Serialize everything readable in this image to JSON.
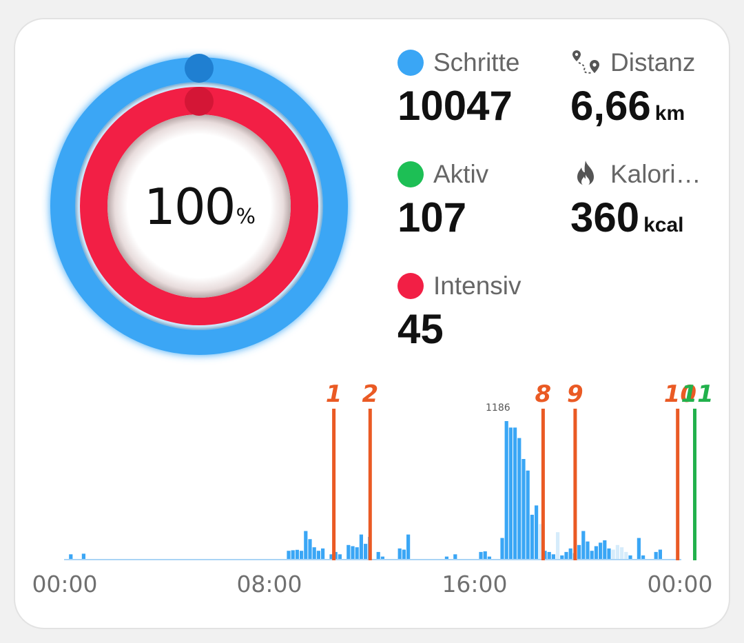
{
  "ring": {
    "percent": "100",
    "percent_unit": "%",
    "outer_color": "#3aa6f5",
    "inner_color": "#f21f45"
  },
  "stats": {
    "steps": {
      "label": "Schritte",
      "value": "10047",
      "color": "#3aa6f5"
    },
    "distance": {
      "label": "Distanz",
      "value": "6,66",
      "unit": "km",
      "icon": "route-pin-icon"
    },
    "active": {
      "label": "Aktiv",
      "value": "107",
      "color": "#1dbf55"
    },
    "calories": {
      "label": "Kalori…",
      "value": "360",
      "unit": "kcal",
      "icon": "flame-icon"
    },
    "intense": {
      "label": "Intensiv",
      "value": "45",
      "color": "#f21f45"
    }
  },
  "chart_data": {
    "type": "bar",
    "x_ticks": [
      "00:00",
      "08:00",
      "16:00",
      "00:00"
    ],
    "peak_label": "1186",
    "ymax": 1186,
    "bar_color": "#3aa6f5",
    "faint_bar_color": "#d6ecfb",
    "bars": [
      {
        "slot": 1,
        "v": 40
      },
      {
        "slot": 4,
        "v": 45
      },
      {
        "slot": 52,
        "v": 70
      },
      {
        "slot": 53,
        "v": 75
      },
      {
        "slot": 54,
        "v": 78
      },
      {
        "slot": 55,
        "v": 70
      },
      {
        "slot": 56,
        "v": 240
      },
      {
        "slot": 57,
        "v": 170
      },
      {
        "slot": 58,
        "v": 100
      },
      {
        "slot": 59,
        "v": 70
      },
      {
        "slot": 60,
        "v": 90
      },
      {
        "slot": 62,
        "v": 40
      },
      {
        "slot": 63,
        "v": 60
      },
      {
        "slot": 64,
        "v": 40
      },
      {
        "slot": 66,
        "v": 120
      },
      {
        "slot": 67,
        "v": 110
      },
      {
        "slot": 68,
        "v": 100
      },
      {
        "slot": 69,
        "v": 210
      },
      {
        "slot": 70,
        "v": 130
      },
      {
        "slot": 71,
        "v": 190
      },
      {
        "slot": 73,
        "v": 60
      },
      {
        "slot": 74,
        "v": 20
      },
      {
        "slot": 78,
        "v": 90
      },
      {
        "slot": 79,
        "v": 80
      },
      {
        "slot": 80,
        "v": 210
      },
      {
        "slot": 89,
        "v": 20
      },
      {
        "slot": 91,
        "v": 40
      },
      {
        "slot": 97,
        "v": 60
      },
      {
        "slot": 98,
        "v": 65
      },
      {
        "slot": 99,
        "v": 20
      },
      {
        "slot": 102,
        "v": 180
      },
      {
        "slot": 103,
        "v": 1186
      },
      {
        "slot": 104,
        "v": 1130
      },
      {
        "slot": 105,
        "v": 1130
      },
      {
        "slot": 106,
        "v": 1040
      },
      {
        "slot": 107,
        "v": 860
      },
      {
        "slot": 108,
        "v": 760
      },
      {
        "slot": 109,
        "v": 380
      },
      {
        "slot": 110,
        "v": 460
      },
      {
        "slot": 111,
        "v": 300,
        "faint": true
      },
      {
        "slot": 112,
        "v": 70
      },
      {
        "slot": 113,
        "v": 60
      },
      {
        "slot": 114,
        "v": 40
      },
      {
        "slot": 115,
        "v": 230,
        "faint": true
      },
      {
        "slot": 116,
        "v": 30
      },
      {
        "slot": 117,
        "v": 60
      },
      {
        "slot": 118,
        "v": 90
      },
      {
        "slot": 119,
        "v": 50
      },
      {
        "slot": 120,
        "v": 120
      },
      {
        "slot": 121,
        "v": 240
      },
      {
        "slot": 122,
        "v": 150
      },
      {
        "slot": 123,
        "v": 70
      },
      {
        "slot": 124,
        "v": 110
      },
      {
        "slot": 125,
        "v": 140
      },
      {
        "slot": 126,
        "v": 160
      },
      {
        "slot": 127,
        "v": 90
      },
      {
        "slot": 128,
        "v": 80,
        "faint": true
      },
      {
        "slot": 129,
        "v": 120,
        "faint": true
      },
      {
        "slot": 130,
        "v": 100,
        "faint": true
      },
      {
        "slot": 131,
        "v": 60,
        "faint": true
      },
      {
        "slot": 132,
        "v": 30
      },
      {
        "slot": 134,
        "v": 180
      },
      {
        "slot": 135,
        "v": 30
      },
      {
        "slot": 138,
        "v": 60
      },
      {
        "slot": 139,
        "v": 80
      }
    ],
    "markers": [
      {
        "label": "1",
        "slot": 63,
        "color": "#ea5a24"
      },
      {
        "label": "2",
        "slot": 71.5,
        "color": "#ea5a24"
      },
      {
        "label": "8",
        "slot": 112,
        "color": "#ea5a24"
      },
      {
        "label": "9",
        "slot": 119.5,
        "color": "#ea5a24"
      },
      {
        "label": "10",
        "slot": 143.5,
        "color": "#ea5a24"
      },
      {
        "label": "11",
        "slot": 147.5,
        "color": "#22b14c"
      }
    ]
  }
}
